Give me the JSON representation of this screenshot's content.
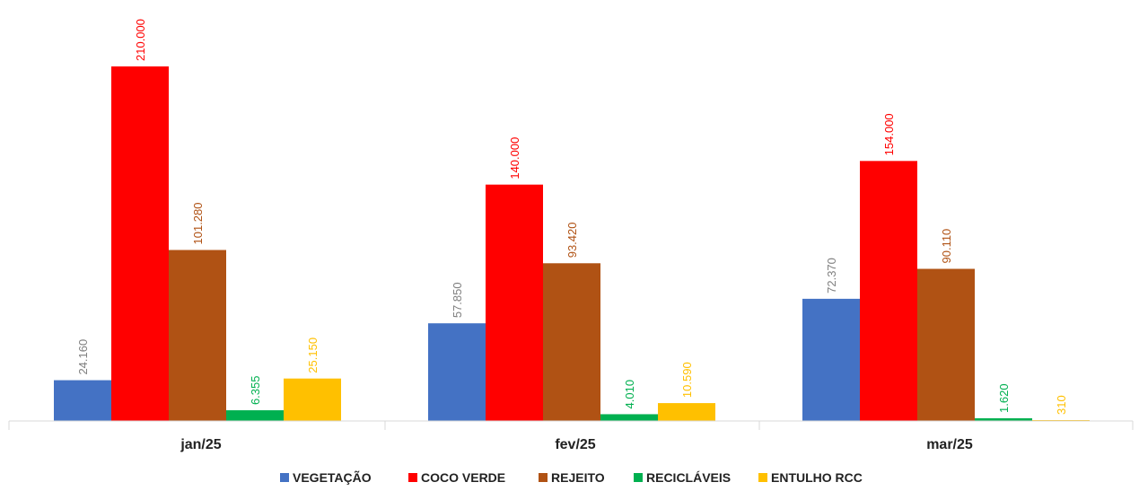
{
  "chart_data": {
    "type": "bar",
    "categories": [
      "jan/25",
      "fev/25",
      "mar/25"
    ],
    "series": [
      {
        "name": "VEGETAÇÃO",
        "color": "#4472C4",
        "label_color": "#7F7F7F",
        "values": [
          24160,
          57850,
          72370
        ],
        "labels": [
          "24.160",
          "57.850",
          "72.370"
        ]
      },
      {
        "name": "COCO VERDE",
        "color": "#FF0000",
        "label_color": "#FF0000",
        "values": [
          210000,
          140000,
          154000
        ],
        "labels": [
          "210.000",
          "140.000",
          "154.000"
        ]
      },
      {
        "name": "REJEITO",
        "color": "#B05214",
        "label_color": "#B05214",
        "values": [
          101280,
          93420,
          90110
        ],
        "labels": [
          "101.280",
          "93.420",
          "90.110"
        ]
      },
      {
        "name": "RECICLÁVEIS",
        "color": "#00B050",
        "label_color": "#00B050",
        "values": [
          6355,
          4010,
          1620
        ],
        "labels": [
          "6.355",
          "4.010",
          "1.620"
        ]
      },
      {
        "name": "ENTULHO RCC",
        "color": "#FFC000",
        "label_color": "#FFC000",
        "values": [
          25150,
          10590,
          310
        ],
        "labels": [
          "25.150",
          "10.590",
          "310"
        ]
      }
    ],
    "ylim": [
      0,
      210000
    ],
    "legend_position": "bottom",
    "grid": false
  }
}
